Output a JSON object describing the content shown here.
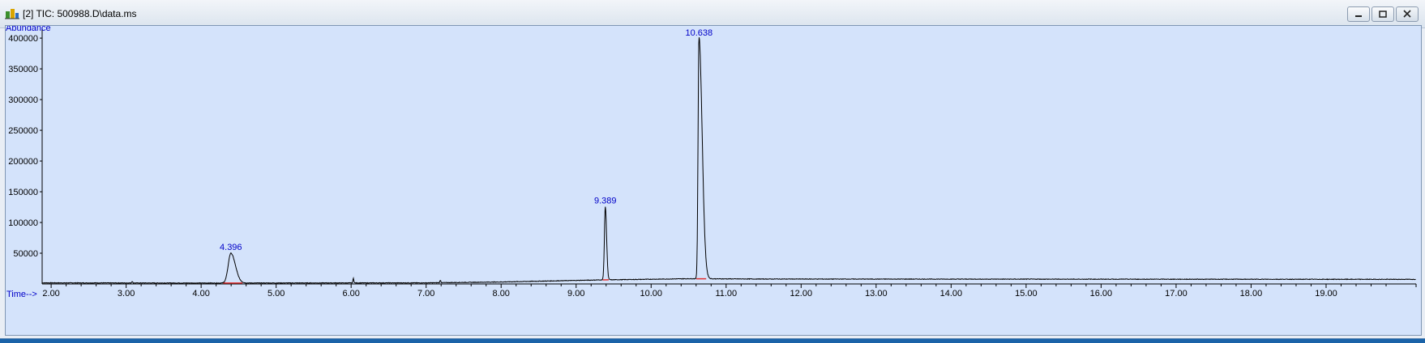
{
  "window": {
    "title": "[2] TIC: 500988.D\\data.ms",
    "controls": [
      "minimize-icon",
      "restore-icon",
      "close-icon"
    ]
  },
  "colors": {
    "plot_background": "#d4e3fb",
    "trace": "#000000",
    "labels": "#0000c8",
    "baseline_markers": "#e03030"
  },
  "chart_data": {
    "type": "line",
    "ylabel": "Abundance",
    "xlabel": "Time-->",
    "xlim": [
      1.88,
      20.2
    ],
    "ylim": [
      0,
      412000
    ],
    "x_ticks": [
      2.0,
      3.0,
      4.0,
      5.0,
      6.0,
      7.0,
      8.0,
      9.0,
      10.0,
      11.0,
      12.0,
      13.0,
      14.0,
      15.0,
      16.0,
      17.0,
      18.0,
      19.0
    ],
    "x_tick_labels": [
      "2.00",
      "3.00",
      "4.00",
      "5.00",
      "6.00",
      "7.00",
      "8.00",
      "9.00",
      "10.00",
      "11.00",
      "12.00",
      "13.00",
      "14.00",
      "15.00",
      "16.00",
      "17.00",
      "18.00",
      "19.00"
    ],
    "y_ticks": [
      50000,
      100000,
      150000,
      200000,
      250000,
      300000,
      350000,
      400000
    ],
    "y_tick_labels": [
      "50000",
      "100000",
      "150000",
      "200000",
      "250000",
      "300000",
      "350000",
      "400000"
    ],
    "grid": false,
    "peaks": [
      {
        "label": "4.396",
        "rt": 4.396,
        "abundance": 50000
      },
      {
        "label": "9.389",
        "rt": 9.389,
        "abundance": 126000
      },
      {
        "label": "10.638",
        "rt": 10.638,
        "abundance": 402000
      }
    ],
    "minor_peaks": [
      {
        "rt": 3.08,
        "abundance": 2500
      },
      {
        "rt": 6.03,
        "abundance": 7500
      },
      {
        "rt": 7.19,
        "abundance": 4000
      }
    ],
    "baseline": [
      {
        "x": 1.88,
        "y": 1800
      },
      {
        "x": 4.0,
        "y": 1500
      },
      {
        "x": 7.0,
        "y": 1800
      },
      {
        "x": 8.0,
        "y": 3200
      },
      {
        "x": 9.3,
        "y": 6500
      },
      {
        "x": 10.5,
        "y": 8500
      },
      {
        "x": 11.5,
        "y": 8000
      },
      {
        "x": 20.2,
        "y": 7500
      }
    ]
  }
}
